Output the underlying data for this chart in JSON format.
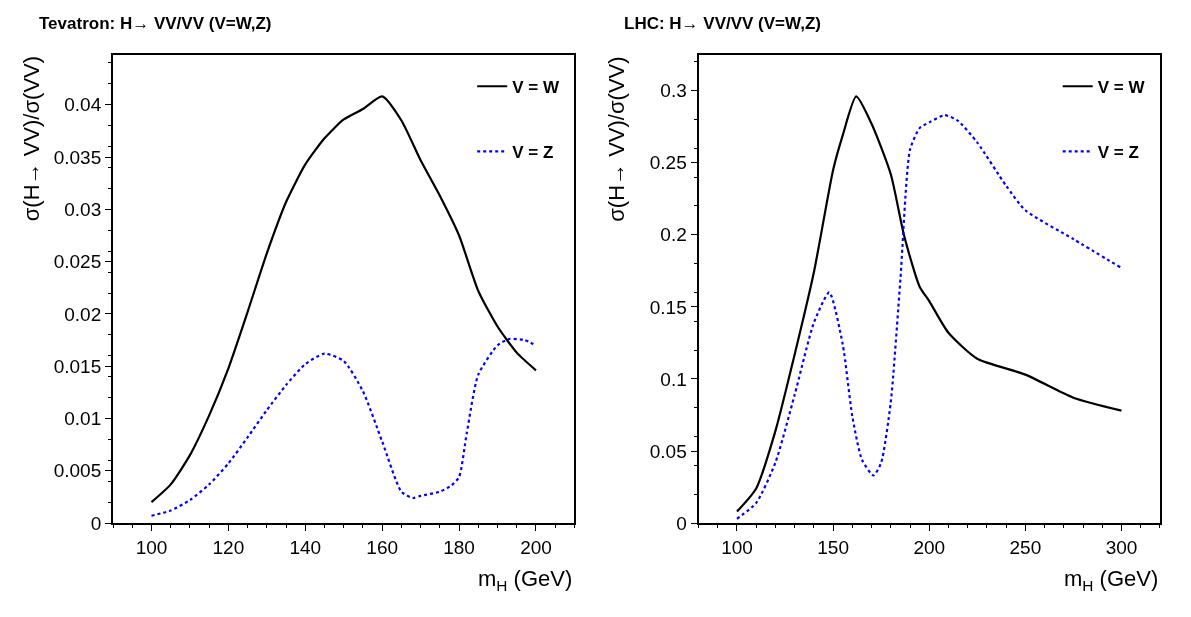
{
  "chart_data": [
    {
      "type": "line",
      "title": "Tevatron: H→ VV/VV (V=W,Z)",
      "xlabel": "m$_{H}$ (GeV)",
      "ylabel": "σ(H→ VV)/σ(VV)",
      "xlim": [
        90,
        210
      ],
      "xticks": [
        100,
        120,
        140,
        160,
        180,
        200
      ],
      "ylim": [
        0,
        0.0448
      ],
      "yticks": [
        0,
        0.005,
        0.01,
        0.015,
        0.02,
        0.025,
        0.03,
        0.035,
        0.04
      ],
      "legend": "top right",
      "marker": "none",
      "series": [
        {
          "name": "V = W",
          "color": "#000000",
          "line_style": "solid",
          "x": [
            100,
            105,
            110,
            115,
            120,
            125,
            130,
            135,
            140,
            145,
            150,
            155,
            160,
            165,
            170,
            175,
            180,
            185,
            190,
            195,
            200
          ],
          "values": [
            0.002,
            0.0037,
            0.0065,
            0.0103,
            0.0148,
            0.0202,
            0.0258,
            0.0307,
            0.0343,
            0.0368,
            0.0386,
            0.0396,
            0.0408,
            0.0385,
            0.0347,
            0.0313,
            0.0275,
            0.0222,
            0.0188,
            0.0163,
            0.0146
          ]
        },
        {
          "name": "V = Z",
          "color": "#0000ff",
          "line_style": "dotted",
          "x": [
            100,
            105,
            110,
            115,
            120,
            125,
            130,
            135,
            140,
            145,
            150,
            155,
            160,
            165,
            168,
            170,
            175,
            178,
            180,
            182,
            185,
            190,
            193,
            197,
            200
          ],
          "values": [
            0.0007,
            0.0012,
            0.0022,
            0.0037,
            0.0057,
            0.0082,
            0.0108,
            0.0132,
            0.0152,
            0.0162,
            0.0155,
            0.0126,
            0.0078,
            0.003,
            0.0024,
            0.0026,
            0.003,
            0.0036,
            0.0044,
            0.0086,
            0.0142,
            0.017,
            0.0176,
            0.0175,
            0.017
          ]
        }
      ]
    },
    {
      "type": "line",
      "title": "LHC: H→ VV/VV (V=W,Z)",
      "xlabel": "m$_{H}$ (GeV)",
      "ylabel": "σ(H→ VV)/σ(VV)",
      "xlim": [
        80,
        320
      ],
      "xticks": [
        100,
        150,
        200,
        250,
        300
      ],
      "ylim": [
        0,
        0.325
      ],
      "yticks": [
        0,
        0.05,
        0.1,
        0.15,
        0.2,
        0.25,
        0.3
      ],
      "legend": "top right",
      "marker": "none",
      "series": [
        {
          "name": "V = W",
          "color": "#000000",
          "line_style": "solid",
          "x": [
            100,
            110,
            120,
            130,
            140,
            150,
            155,
            162,
            170,
            180,
            187,
            195,
            200,
            210,
            225,
            250,
            275,
            300
          ],
          "values": [
            0.008,
            0.024,
            0.064,
            0.117,
            0.174,
            0.245,
            0.269,
            0.296,
            0.277,
            0.242,
            0.199,
            0.164,
            0.154,
            0.132,
            0.114,
            0.103,
            0.087,
            0.078
          ]
        },
        {
          "name": "V = Z",
          "color": "#0000ff",
          "line_style": "dotted",
          "x": [
            100,
            110,
            120,
            130,
            140,
            148,
            155,
            160,
            165,
            171,
            175,
            180,
            185,
            190,
            195,
            200,
            208,
            215,
            225,
            240,
            250,
            275,
            300
          ],
          "values": [
            0.003,
            0.014,
            0.042,
            0.089,
            0.139,
            0.16,
            0.124,
            0.074,
            0.044,
            0.033,
            0.042,
            0.084,
            0.169,
            0.259,
            0.274,
            0.278,
            0.283,
            0.279,
            0.264,
            0.234,
            0.217,
            0.197,
            0.177
          ]
        }
      ]
    }
  ]
}
